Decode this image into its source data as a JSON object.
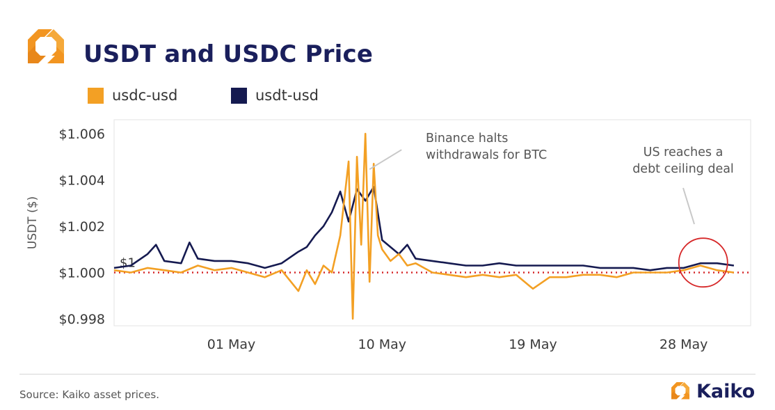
{
  "header": {
    "title": "USDT and USDC Price"
  },
  "legend": [
    {
      "label": "usdc-usd",
      "color": "#f3a024"
    },
    {
      "label": "usdt-usd",
      "color": "#151a50"
    }
  ],
  "footer": {
    "source": "Source: Kaiko asset prices.",
    "brand": "Kaiko"
  },
  "colors": {
    "title": "#1a1f5c",
    "usdc": "#f3a024",
    "usdt": "#151a50",
    "reference_line": "#d62728",
    "highlight_circle": "#d62728",
    "logo_orange": "#f29521"
  },
  "icons": {
    "logo": "kaiko-logo-icon"
  },
  "chart_data": {
    "type": "line",
    "title": "USDT and USDC Price",
    "ylabel": "USDT ($)",
    "xlabel": "",
    "ylim": [
      0.9977,
      1.0066
    ],
    "xlim": [
      "2023-04-24",
      "2023-06-01"
    ],
    "x_ticks": [
      {
        "date": "2023-05-01",
        "label": "01 May"
      },
      {
        "date": "2023-05-10",
        "label": "10 May"
      },
      {
        "date": "2023-05-19",
        "label": "19 May"
      },
      {
        "date": "2023-05-28",
        "label": "28 May"
      }
    ],
    "y_ticks": [
      {
        "value": 0.998,
        "label": "$0.998"
      },
      {
        "value": 1.0,
        "label": "$1.000"
      },
      {
        "value": 1.002,
        "label": "$1.002"
      },
      {
        "value": 1.004,
        "label": "$1.004"
      },
      {
        "value": 1.006,
        "label": "$1.006"
      }
    ],
    "reference_line": {
      "value": 1.0,
      "label": "$1",
      "style": "dotted"
    },
    "grid": false,
    "legend_position": "top-left",
    "annotations": [
      {
        "text_lines": [
          "Binance halts",
          "withdrawals for BTC"
        ],
        "date": "2023-05-09",
        "value": 1.0044
      },
      {
        "text_lines": [
          "US reaches a",
          "debt ceiling deal"
        ],
        "date": "2023-05-28",
        "value": 1.0019
      }
    ],
    "highlight": {
      "date": "2023-05-29",
      "value": 1.0004,
      "shape": "circle"
    },
    "series": [
      {
        "name": "usdt-usd",
        "color": "#151a50",
        "x": [
          "2023-04-24",
          "2023-04-25",
          "2023-04-26",
          "2023-04-26 12:00",
          "2023-04-27",
          "2023-04-28",
          "2023-04-28 12:00",
          "2023-04-29",
          "2023-04-30",
          "2023-05-01",
          "2023-05-02",
          "2023-05-03",
          "2023-05-04",
          "2023-05-05",
          "2023-05-05 12:00",
          "2023-05-06",
          "2023-05-06 12:00",
          "2023-05-07",
          "2023-05-07 12:00",
          "2023-05-08",
          "2023-05-08 12:00",
          "2023-05-09",
          "2023-05-09 12:00",
          "2023-05-10",
          "2023-05-10 12:00",
          "2023-05-11",
          "2023-05-11 12:00",
          "2023-05-12",
          "2023-05-13",
          "2023-05-14",
          "2023-05-15",
          "2023-05-16",
          "2023-05-17",
          "2023-05-18",
          "2023-05-19",
          "2023-05-20",
          "2023-05-21",
          "2023-05-22",
          "2023-05-23",
          "2023-05-24",
          "2023-05-25",
          "2023-05-26",
          "2023-05-27",
          "2023-05-28",
          "2023-05-29",
          "2023-05-30",
          "2023-05-31"
        ],
        "y": [
          1.0002,
          1.0003,
          1.0008,
          1.0012,
          1.0005,
          1.0004,
          1.0013,
          1.0006,
          1.0005,
          1.0005,
          1.0004,
          1.0002,
          1.0004,
          1.0009,
          1.0011,
          1.0016,
          1.002,
          1.0026,
          1.0035,
          1.0022,
          1.0036,
          1.0031,
          1.0037,
          1.0014,
          1.0011,
          1.0008,
          1.0012,
          1.0006,
          1.0005,
          1.0004,
          1.0003,
          1.0003,
          1.0004,
          1.0003,
          1.0003,
          1.0003,
          1.0003,
          1.0003,
          1.0002,
          1.0002,
          1.0002,
          1.0001,
          1.0002,
          1.0002,
          1.0004,
          1.0004,
          1.0003
        ]
      },
      {
        "name": "usdc-usd",
        "color": "#f3a024",
        "x": [
          "2023-04-24",
          "2023-04-25",
          "2023-04-26",
          "2023-04-27",
          "2023-04-28",
          "2023-04-29",
          "2023-04-30",
          "2023-05-01",
          "2023-05-02",
          "2023-05-03",
          "2023-05-04",
          "2023-05-05",
          "2023-05-05 12:00",
          "2023-05-06",
          "2023-05-06 12:00",
          "2023-05-07",
          "2023-05-07 12:00",
          "2023-05-08",
          "2023-05-08 06:00",
          "2023-05-08 12:00",
          "2023-05-08 18:00",
          "2023-05-09",
          "2023-05-09 06:00",
          "2023-05-09 12:00",
          "2023-05-09 18:00",
          "2023-05-10",
          "2023-05-10 12:00",
          "2023-05-11",
          "2023-05-11 12:00",
          "2023-05-12",
          "2023-05-13",
          "2023-05-14",
          "2023-05-15",
          "2023-05-16",
          "2023-05-17",
          "2023-05-18",
          "2023-05-19",
          "2023-05-20",
          "2023-05-21",
          "2023-05-22",
          "2023-05-23",
          "2023-05-24",
          "2023-05-25",
          "2023-05-26",
          "2023-05-27",
          "2023-05-28",
          "2023-05-29",
          "2023-05-30",
          "2023-05-31"
        ],
        "y": [
          1.0001,
          1.0,
          1.0002,
          1.0001,
          1.0,
          1.0003,
          1.0001,
          1.0002,
          1.0,
          0.9998,
          1.0001,
          0.9992,
          1.0001,
          0.9995,
          1.0003,
          1.0,
          1.0016,
          1.0048,
          0.998,
          1.005,
          1.0012,
          1.006,
          0.9996,
          1.0047,
          1.0016,
          1.001,
          1.0005,
          1.0008,
          1.0003,
          1.0004,
          1.0,
          0.9999,
          0.9998,
          0.9999,
          0.9998,
          0.9999,
          0.9993,
          0.9998,
          0.9998,
          0.9999,
          0.9999,
          0.9998,
          1.0,
          1.0,
          1.0,
          1.0001,
          1.0003,
          1.0001,
          1.0
        ]
      }
    ]
  }
}
